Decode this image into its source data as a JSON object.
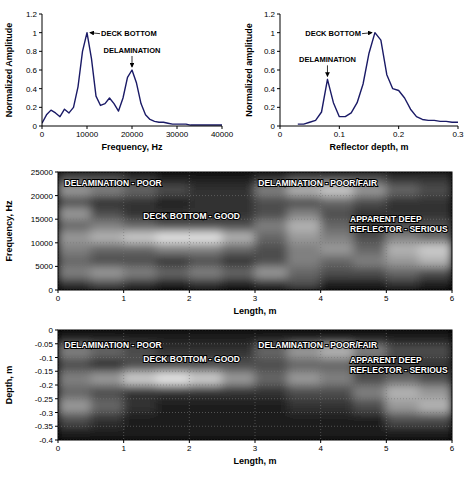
{
  "chart_data": [
    {
      "type": "line",
      "x_label": "Frequency, Hz",
      "y_label": "Normalized Amplitude",
      "xlim": [
        0,
        40000
      ],
      "ylim": [
        0,
        1.2
      ],
      "xticks": [
        0,
        10000,
        20000,
        30000,
        40000
      ],
      "yticks": [
        0,
        0.2,
        0.4,
        0.6,
        0.8,
        1,
        1.2
      ],
      "color": "#1a1a66",
      "x": [
        0,
        1000,
        2000,
        3000,
        4000,
        5000,
        6000,
        7000,
        8000,
        9000,
        10000,
        11000,
        12000,
        13000,
        14000,
        15000,
        16000,
        17000,
        18000,
        19000,
        20000,
        21000,
        22000,
        23000,
        24000,
        25000,
        26000,
        27000,
        28000,
        29000,
        30000,
        31000,
        32000,
        33000,
        34000,
        35000,
        36000,
        37000,
        38000,
        39000,
        40000
      ],
      "values": [
        0.03,
        0.12,
        0.17,
        0.14,
        0.1,
        0.18,
        0.14,
        0.2,
        0.42,
        0.8,
        1,
        0.72,
        0.32,
        0.22,
        0.24,
        0.3,
        0.24,
        0.16,
        0.3,
        0.52,
        0.6,
        0.46,
        0.24,
        0.12,
        0.07,
        0.05,
        0.04,
        0.04,
        0.03,
        0.02,
        0.02,
        0.02,
        0.02,
        0.01,
        0.01,
        0.01,
        0.01,
        0.01,
        0.01,
        0.01,
        0.01
      ],
      "annotations": [
        {
          "text": "DECK BOTTOM",
          "x": 10000,
          "y": 1
        },
        {
          "text": "DELAMINATION",
          "x": 20000,
          "y": 0.6
        }
      ]
    },
    {
      "type": "line",
      "x_label": "Reflector depth, m",
      "y_label": "Normalized amplitude",
      "xlim": [
        0,
        0.3
      ],
      "ylim": [
        0,
        1.2
      ],
      "xticks": [
        0,
        0.1,
        0.2,
        0.3
      ],
      "yticks": [
        0,
        0.2,
        0.4,
        0.6,
        0.8,
        1,
        1.2
      ],
      "color": "#1a1a66",
      "x": [
        0.03,
        0.04,
        0.05,
        0.06,
        0.07,
        0.08,
        0.09,
        0.1,
        0.11,
        0.12,
        0.13,
        0.14,
        0.15,
        0.16,
        0.17,
        0.18,
        0.19,
        0.2,
        0.21,
        0.22,
        0.23,
        0.24,
        0.25,
        0.26,
        0.27,
        0.28,
        0.29,
        0.3
      ],
      "values": [
        0.02,
        0.02,
        0.04,
        0.06,
        0.15,
        0.5,
        0.25,
        0.1,
        0.1,
        0.14,
        0.25,
        0.45,
        0.78,
        1,
        0.92,
        0.55,
        0.4,
        0.38,
        0.3,
        0.18,
        0.1,
        0.07,
        0.06,
        0.06,
        0.05,
        0.05,
        0.04,
        0.04
      ],
      "annotations": [
        {
          "text": "DECK BOTTOM",
          "x": 0.16,
          "y": 1
        },
        {
          "text": "DELAMINATION",
          "x": 0.08,
          "y": 0.5
        }
      ]
    },
    {
      "type": "heatmap",
      "x_label": "Length, m",
      "y_label": "Frequency, Hz",
      "xlim": [
        0,
        6
      ],
      "ylim": [
        0,
        25000
      ],
      "xticks": [
        0,
        1,
        2,
        3,
        4,
        5,
        6
      ],
      "yticks": [
        0,
        5000,
        10000,
        15000,
        20000,
        25000
      ],
      "grid": true,
      "x_edges": [
        0,
        0.5,
        1,
        1.5,
        2,
        2.5,
        3,
        3.5,
        4,
        4.5,
        5,
        5.5,
        6
      ],
      "y_edges": [
        0,
        2500,
        5000,
        7500,
        10000,
        12500,
        15000,
        17500,
        20000,
        22500,
        25000
      ],
      "cells": [
        [
          0.2,
          0.3,
          0.2,
          0.1,
          0.2,
          0.1,
          0.2,
          0.3,
          0.1,
          0.1,
          0.2,
          0.1
        ],
        [
          0.5,
          0.6,
          0.5,
          0.4,
          0.5,
          0.4,
          0.6,
          0.4,
          0.3,
          0.3,
          0.4,
          0.3
        ],
        [
          0.4,
          0.3,
          0.3,
          0.2,
          0.3,
          0.2,
          0.3,
          0.5,
          0.4,
          0.5,
          0.6,
          0.7
        ],
        [
          0.5,
          0.4,
          0.4,
          0.5,
          0.5,
          0.4,
          0.3,
          0.5,
          0.6,
          0.4,
          0.7,
          0.8
        ],
        [
          0.6,
          0.7,
          0.8,
          0.9,
          0.9,
          0.7,
          0.4,
          0.6,
          0.5,
          0.3,
          0.5,
          0.4
        ],
        [
          0.4,
          0.5,
          0.4,
          0.3,
          0.3,
          0.3,
          0.5,
          0.7,
          0.4,
          0.2,
          0.3,
          0.3
        ],
        [
          0.6,
          0.3,
          0.2,
          0.2,
          0.2,
          0.2,
          0.3,
          0.5,
          0.3,
          0.2,
          0.2,
          0.2
        ],
        [
          0.3,
          0.2,
          0.2,
          0.1,
          0.2,
          0.2,
          0.3,
          0.3,
          0.4,
          0.3,
          0.2,
          0.2
        ],
        [
          0.6,
          0.5,
          0.4,
          0.3,
          0.2,
          0.2,
          0.5,
          0.7,
          0.8,
          0.6,
          0.4,
          0.3
        ],
        [
          0.3,
          0.3,
          0.2,
          0.1,
          0.1,
          0.1,
          0.2,
          0.3,
          0.3,
          0.3,
          0.2,
          0.2
        ]
      ],
      "annotations": [
        {
          "text": "DELAMINATION - POOR",
          "x": 0.1,
          "y": 22000
        },
        {
          "text": "DECK BOTTOM - GOOD",
          "x": 1.3,
          "y": 15000
        },
        {
          "text": "DELAMINATION - POOR/FAIR",
          "x": 3.05,
          "y": 22000
        },
        {
          "text": "APPARENT DEEP\nREFLECTOR - SERIOUS",
          "x": 4.65,
          "y": 14500
        }
      ]
    },
    {
      "type": "heatmap",
      "x_label": "Length, m",
      "y_label": "Depth, m",
      "xlim": [
        0,
        6
      ],
      "ylim": [
        -0.4,
        0
      ],
      "xticks": [
        0,
        1,
        2,
        3,
        4,
        5,
        6
      ],
      "yticks": [
        -0.4,
        -0.35,
        -0.3,
        -0.25,
        -0.2,
        -0.15,
        -0.1,
        -0.05,
        0
      ],
      "grid": true,
      "x_edges": [
        0,
        0.5,
        1,
        1.5,
        2,
        2.5,
        3,
        3.5,
        4,
        4.5,
        5,
        5.5,
        6
      ],
      "y_edges": [
        -0.4,
        -0.35,
        -0.3,
        -0.25,
        -0.2,
        -0.15,
        -0.1,
        -0.05,
        0
      ],
      "cells": [
        [
          0.1,
          0.1,
          0.1,
          0.1,
          0.1,
          0.1,
          0.1,
          0.1,
          0.1,
          0.1,
          0.1,
          0.1
        ],
        [
          0.3,
          0.2,
          0.1,
          0.1,
          0.1,
          0.1,
          0.1,
          0.1,
          0.1,
          0.1,
          0.3,
          0.3
        ],
        [
          0.6,
          0.4,
          0.2,
          0.1,
          0.1,
          0.1,
          0.1,
          0.2,
          0.2,
          0.3,
          0.6,
          0.7
        ],
        [
          0.4,
          0.3,
          0.2,
          0.2,
          0.2,
          0.2,
          0.2,
          0.3,
          0.3,
          0.5,
          0.7,
          0.6
        ],
        [
          0.5,
          0.6,
          0.8,
          0.9,
          0.8,
          0.6,
          0.4,
          0.6,
          0.5,
          0.3,
          0.4,
          0.3
        ],
        [
          0.3,
          0.2,
          0.3,
          0.3,
          0.3,
          0.3,
          0.3,
          0.4,
          0.4,
          0.2,
          0.2,
          0.2
        ],
        [
          0.5,
          0.4,
          0.3,
          0.2,
          0.2,
          0.2,
          0.4,
          0.6,
          0.7,
          0.5,
          0.3,
          0.3
        ],
        [
          0.1,
          0.1,
          0.1,
          0.1,
          0.1,
          0.1,
          0.1,
          0.1,
          0.1,
          0.1,
          0.1,
          0.1
        ]
      ],
      "annotations": [
        {
          "text": "DELAMINATION - POOR",
          "x": 0.1,
          "y": -0.065
        },
        {
          "text": "DECK BOTTOM - GOOD",
          "x": 1.3,
          "y": -0.115
        },
        {
          "text": "DELAMINATION - POOR/FAIR",
          "x": 3.05,
          "y": -0.065
        },
        {
          "text": "APPARENT DEEP\nREFLECTOR - SERIOUS",
          "x": 4.65,
          "y": -0.12
        }
      ]
    }
  ]
}
